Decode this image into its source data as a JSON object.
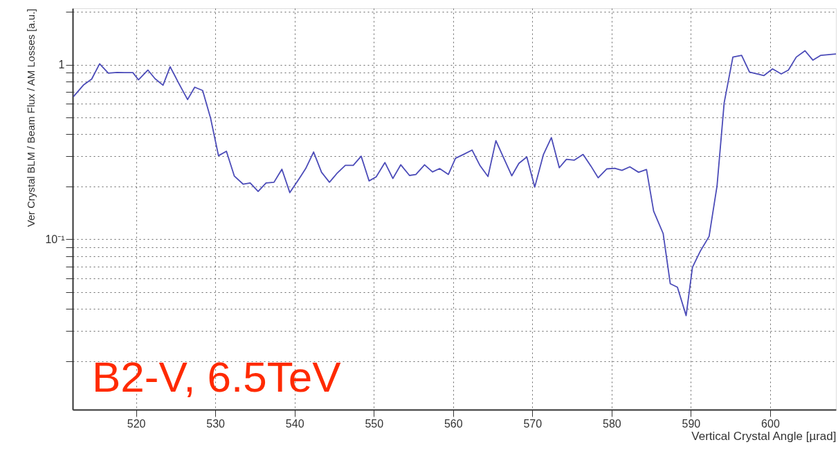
{
  "chart_data": {
    "type": "line",
    "xlabel": "Vertical Crystal Angle [µrad]",
    "ylabel": "Ver Crystal BLM / Beam Flux / AM Losses [a.u.]",
    "annotations": [
      "B2-V, 6.5TeV"
    ],
    "x": [
      512.1,
      513.4,
      514.4,
      515.4,
      516.5,
      517.6,
      518.5,
      519.6,
      520.3,
      521.5,
      522.4,
      523.4,
      524.3,
      525.4,
      526.5,
      527.4,
      528.4,
      529.4,
      530.4,
      531.4,
      532.4,
      533.5,
      534.4,
      535.4,
      536.4,
      537.4,
      538.4,
      539.4,
      540.4,
      541.4,
      542.4,
      543.4,
      544.4,
      545.4,
      546.4,
      547.4,
      548.4,
      549.4,
      550.3,
      551.4,
      552.4,
      553.4,
      554.5,
      555.3,
      556.4,
      557.4,
      558.3,
      559.4,
      560.3,
      561.3,
      562.4,
      563.4,
      564.4,
      565.4,
      566.4,
      567.4,
      568.3,
      569.3,
      570.3,
      571.4,
      572.4,
      573.4,
      574.3,
      575.3,
      576.4,
      577.4,
      578.3,
      579.4,
      580.4,
      581.3,
      582.3,
      583.4,
      584.4,
      585.3,
      586.5,
      587.4,
      588.3,
      589.4,
      590.2,
      591.2,
      592.3,
      593.3,
      594.2,
      595.3,
      596.4,
      597.4,
      598.4,
      599.2,
      600.3,
      601.4,
      602.3,
      603.3,
      604.4,
      605.4,
      606.4,
      608.3
    ],
    "series": [
      {
        "color": "#4b4bb8",
        "values": [
          0.656,
          0.767,
          0.826,
          1.01,
          0.893,
          0.902,
          0.9,
          0.9,
          0.818,
          0.93,
          0.83,
          0.762,
          0.972,
          0.78,
          0.631,
          0.742,
          0.711,
          0.494,
          0.301,
          0.319,
          0.23,
          0.207,
          0.21,
          0.188,
          0.21,
          0.212,
          0.252,
          0.185,
          0.216,
          0.254,
          0.316,
          0.242,
          0.212,
          0.24,
          0.265,
          0.265,
          0.299,
          0.216,
          0.228,
          0.275,
          0.223,
          0.267,
          0.232,
          0.235,
          0.267,
          0.243,
          0.254,
          0.235,
          0.291,
          0.306,
          0.324,
          0.264,
          0.229,
          0.367,
          0.291,
          0.231,
          0.272,
          0.296,
          0.199,
          0.306,
          0.382,
          0.257,
          0.287,
          0.284,
          0.306,
          0.262,
          0.225,
          0.253,
          0.255,
          0.248,
          0.26,
          0.242,
          0.251,
          0.145,
          0.108,
          0.0557,
          0.0532,
          0.0366,
          0.0692,
          0.0857,
          0.104,
          0.202,
          0.604,
          1.104,
          1.13,
          0.906,
          0.884,
          0.865,
          0.945,
          0.884,
          0.93,
          1.104,
          1.2,
          1.06,
          1.13,
          1.15
        ]
      }
    ],
    "xlim": [
      512,
      608.3
    ],
    "xticks": [
      520,
      530,
      540,
      550,
      560,
      570,
      580,
      590,
      600
    ],
    "ylim": [
      0.0106,
      2.1
    ],
    "yticks": [
      {
        "value": 0.02,
        "label": null
      },
      {
        "value": 0.03,
        "label": null
      },
      {
        "value": 0.04,
        "label": null
      },
      {
        "value": 0.05,
        "label": null
      },
      {
        "value": 0.06,
        "label": null
      },
      {
        "value": 0.07,
        "label": null
      },
      {
        "value": 0.08,
        "label": null
      },
      {
        "value": 0.09,
        "label": null
      },
      {
        "value": 0.1,
        "label": "10⁻¹"
      },
      {
        "value": 0.2,
        "label": null
      },
      {
        "value": 0.3,
        "label": null
      },
      {
        "value": 0.4,
        "label": null
      },
      {
        "value": 0.5,
        "label": null
      },
      {
        "value": 0.6,
        "label": null
      },
      {
        "value": 0.7,
        "label": null
      },
      {
        "value": 0.8,
        "label": null
      },
      {
        "value": 0.9,
        "label": null
      },
      {
        "value": 1,
        "label": "1"
      },
      {
        "value": 2,
        "label": null
      }
    ],
    "log": true,
    "grid": true
  }
}
